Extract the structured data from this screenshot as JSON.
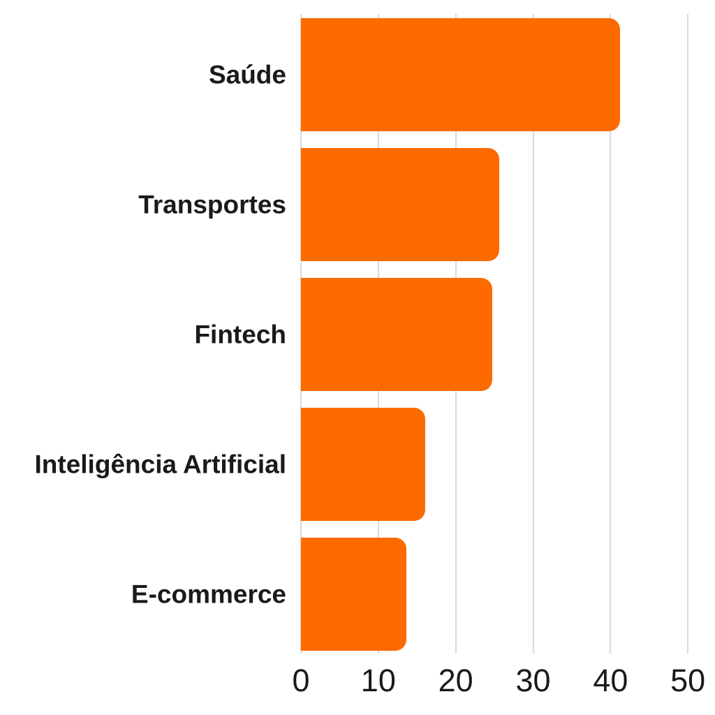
{
  "chart_data": {
    "type": "bar",
    "orientation": "horizontal",
    "title": "",
    "xlabel": "",
    "ylabel": "",
    "categories": [
      "Saúde",
      "Transportes",
      "Fintech",
      "Inteligência Artificial",
      "E-commerce"
    ],
    "values": [
      41.2,
      25.6,
      24.7,
      16.1,
      13.6
    ],
    "x_ticks": [
      0,
      10,
      20,
      30,
      40,
      50
    ],
    "xlim": [
      0,
      52.6
    ],
    "grid": "vertical-only",
    "legend": false,
    "colors": {
      "bar": "#fc6a00",
      "text": "#1a1a1a",
      "gridline": "#d9d9d9",
      "background": "#ffffff"
    }
  }
}
